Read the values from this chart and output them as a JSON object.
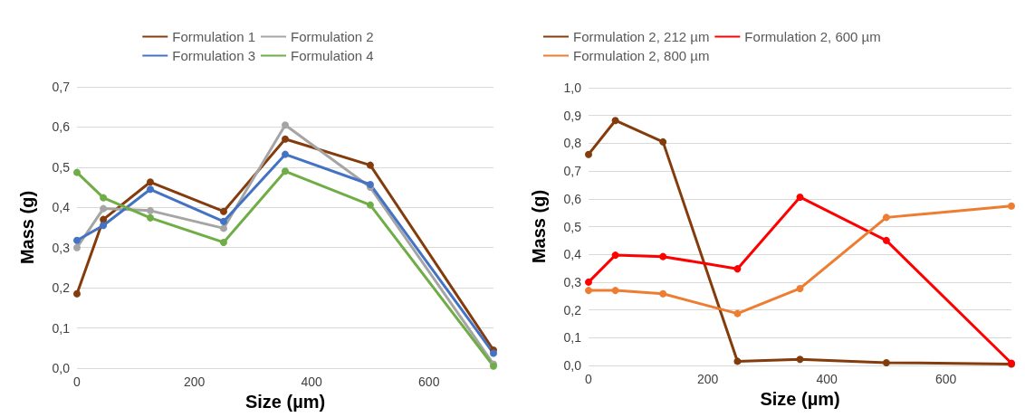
{
  "chart_data": [
    {
      "type": "line",
      "xlabel": "Size (µm)",
      "ylabel": "Mass (g)",
      "x": [
        0,
        45,
        125,
        250,
        355,
        500,
        710
      ],
      "xlim": [
        0,
        710
      ],
      "xticks": [
        0,
        200,
        400,
        600
      ],
      "ylim": [
        0,
        0.7
      ],
      "yticks": [
        {
          "value": 0,
          "label": "0,0"
        },
        {
          "value": 0.1,
          "label": "0,1"
        },
        {
          "value": 0.2,
          "label": "0,2"
        },
        {
          "value": 0.3,
          "label": "0,3"
        },
        {
          "value": 0.4,
          "label": "0,4"
        },
        {
          "value": 0.5,
          "label": "0,5"
        },
        {
          "value": 0.6,
          "label": "0,6"
        },
        {
          "value": 0.7,
          "label": "0,7"
        }
      ],
      "grid": "y",
      "legend": "top",
      "marker": "circle",
      "series": [
        {
          "name": "Formulation 1",
          "color": "#843c0c",
          "values": [
            0.185,
            0.37,
            0.463,
            0.39,
            0.57,
            0.505,
            0.045
          ]
        },
        {
          "name": "Formulation 2",
          "color": "#a5a5a5",
          "values": [
            0.3,
            0.397,
            0.392,
            0.348,
            0.605,
            0.45,
            0.01
          ]
        },
        {
          "name": "Formulation 3",
          "color": "#4472c4",
          "values": [
            0.318,
            0.355,
            0.445,
            0.365,
            0.532,
            0.457,
            0.037
          ]
        },
        {
          "name": "Formulation 4",
          "color": "#70ad47",
          "values": [
            0.487,
            0.424,
            0.374,
            0.313,
            0.49,
            0.406,
            0.005
          ]
        }
      ]
    },
    {
      "type": "line",
      "xlabel": "Size (µm)",
      "ylabel": "Mass (g)",
      "x": [
        0,
        45,
        125,
        250,
        355,
        500,
        710
      ],
      "xlim": [
        0,
        710
      ],
      "xticks": [
        0,
        200,
        400,
        600
      ],
      "ylim": [
        0,
        1
      ],
      "yticks": [
        {
          "value": 0,
          "label": "0,0"
        },
        {
          "value": 0.1,
          "label": "0,1"
        },
        {
          "value": 0.2,
          "label": "0,2"
        },
        {
          "value": 0.3,
          "label": "0,3"
        },
        {
          "value": 0.4,
          "label": "0,4"
        },
        {
          "value": 0.5,
          "label": "0,5"
        },
        {
          "value": 0.6,
          "label": "0,6"
        },
        {
          "value": 0.7,
          "label": "0,7"
        },
        {
          "value": 0.8,
          "label": "0,8"
        },
        {
          "value": 0.9,
          "label": "0,9"
        },
        {
          "value": 1,
          "label": "1,0"
        }
      ],
      "grid": "y",
      "legend": "top",
      "marker": "circle",
      "series": [
        {
          "name": "Formulation 2, 212 µm",
          "color": "#843c0c",
          "values": [
            0.76,
            0.882,
            0.805,
            0.015,
            0.022,
            0.01,
            0.005
          ]
        },
        {
          "name": "Formulation 2, 600 µm",
          "color": "#ff0000",
          "values": [
            0.3,
            0.397,
            0.392,
            0.348,
            0.606,
            0.45,
            0.008
          ]
        },
        {
          "name": "Formulation 2, 800 µm",
          "color": "#ed7d31",
          "values": [
            0.27,
            0.27,
            0.258,
            0.187,
            0.277,
            0.533,
            0.574
          ]
        }
      ]
    }
  ]
}
